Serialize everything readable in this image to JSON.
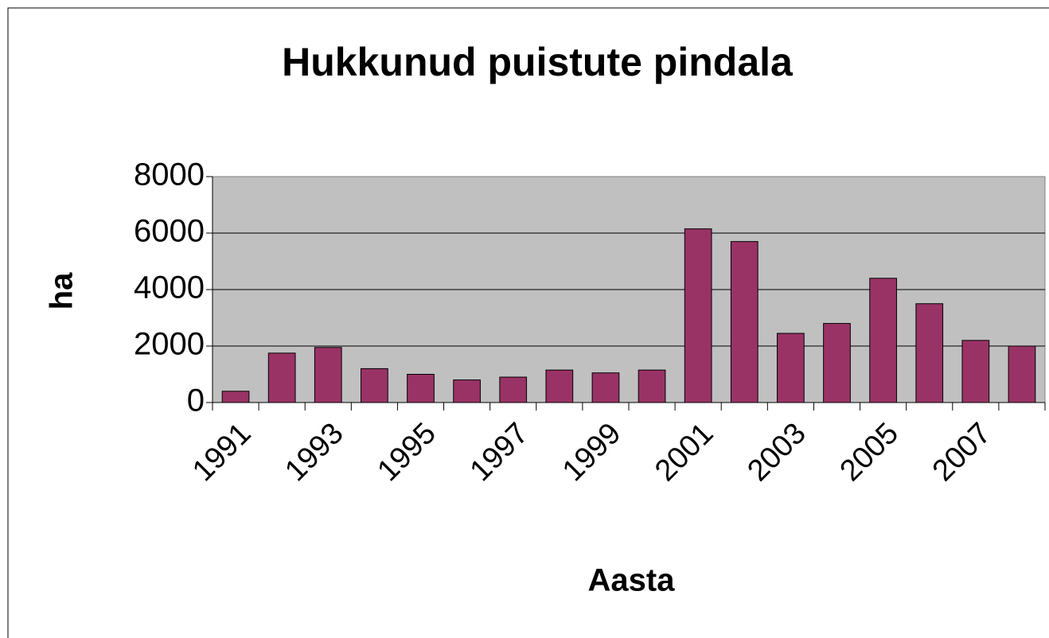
{
  "chart_data": {
    "type": "bar",
    "title": "Hukkunud puistute pindala",
    "x_label": "Aasta",
    "y_label": "ha",
    "categories": [
      "1991",
      null,
      "1993",
      null,
      "1995",
      null,
      "1997",
      null,
      "1999",
      null,
      "2001",
      null,
      "2003",
      null,
      "2005",
      null,
      "2007",
      null
    ],
    "values": [
      400,
      1750,
      1950,
      1200,
      1000,
      800,
      900,
      1150,
      1050,
      1150,
      6150,
      5700,
      2450,
      2800,
      4400,
      3500,
      2200,
      2000
    ],
    "color": "#993366",
    "ylim": [
      0,
      8000
    ],
    "yticks": [
      0,
      2000,
      4000,
      6000,
      8000
    ],
    "grid": true
  }
}
